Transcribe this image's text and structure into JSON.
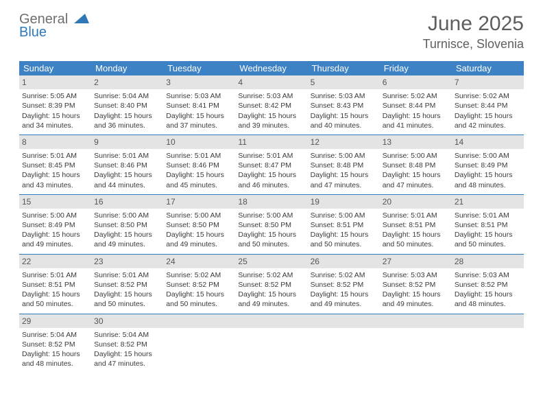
{
  "logo": {
    "general": "General",
    "blue": "Blue"
  },
  "title": "June 2025",
  "location": "Turnisce, Slovenia",
  "colors": {
    "header_bar": "#3d82c4",
    "week_border": "#2f79b9",
    "daynum_bg": "#e4e4e4",
    "text": "#3a3a3a",
    "title_text": "#5e5e5e"
  },
  "daysOfWeek": [
    "Sunday",
    "Monday",
    "Tuesday",
    "Wednesday",
    "Thursday",
    "Friday",
    "Saturday"
  ],
  "weeks": [
    [
      {
        "n": "1",
        "sr": "5:05 AM",
        "ss": "8:39 PM",
        "dl": "15 hours and 34 minutes."
      },
      {
        "n": "2",
        "sr": "5:04 AM",
        "ss": "8:40 PM",
        "dl": "15 hours and 36 minutes."
      },
      {
        "n": "3",
        "sr": "5:03 AM",
        "ss": "8:41 PM",
        "dl": "15 hours and 37 minutes."
      },
      {
        "n": "4",
        "sr": "5:03 AM",
        "ss": "8:42 PM",
        "dl": "15 hours and 39 minutes."
      },
      {
        "n": "5",
        "sr": "5:03 AM",
        "ss": "8:43 PM",
        "dl": "15 hours and 40 minutes."
      },
      {
        "n": "6",
        "sr": "5:02 AM",
        "ss": "8:44 PM",
        "dl": "15 hours and 41 minutes."
      },
      {
        "n": "7",
        "sr": "5:02 AM",
        "ss": "8:44 PM",
        "dl": "15 hours and 42 minutes."
      }
    ],
    [
      {
        "n": "8",
        "sr": "5:01 AM",
        "ss": "8:45 PM",
        "dl": "15 hours and 43 minutes."
      },
      {
        "n": "9",
        "sr": "5:01 AM",
        "ss": "8:46 PM",
        "dl": "15 hours and 44 minutes."
      },
      {
        "n": "10",
        "sr": "5:01 AM",
        "ss": "8:46 PM",
        "dl": "15 hours and 45 minutes."
      },
      {
        "n": "11",
        "sr": "5:01 AM",
        "ss": "8:47 PM",
        "dl": "15 hours and 46 minutes."
      },
      {
        "n": "12",
        "sr": "5:00 AM",
        "ss": "8:48 PM",
        "dl": "15 hours and 47 minutes."
      },
      {
        "n": "13",
        "sr": "5:00 AM",
        "ss": "8:48 PM",
        "dl": "15 hours and 47 minutes."
      },
      {
        "n": "14",
        "sr": "5:00 AM",
        "ss": "8:49 PM",
        "dl": "15 hours and 48 minutes."
      }
    ],
    [
      {
        "n": "15",
        "sr": "5:00 AM",
        "ss": "8:49 PM",
        "dl": "15 hours and 49 minutes."
      },
      {
        "n": "16",
        "sr": "5:00 AM",
        "ss": "8:50 PM",
        "dl": "15 hours and 49 minutes."
      },
      {
        "n": "17",
        "sr": "5:00 AM",
        "ss": "8:50 PM",
        "dl": "15 hours and 49 minutes."
      },
      {
        "n": "18",
        "sr": "5:00 AM",
        "ss": "8:50 PM",
        "dl": "15 hours and 50 minutes."
      },
      {
        "n": "19",
        "sr": "5:00 AM",
        "ss": "8:51 PM",
        "dl": "15 hours and 50 minutes."
      },
      {
        "n": "20",
        "sr": "5:01 AM",
        "ss": "8:51 PM",
        "dl": "15 hours and 50 minutes."
      },
      {
        "n": "21",
        "sr": "5:01 AM",
        "ss": "8:51 PM",
        "dl": "15 hours and 50 minutes."
      }
    ],
    [
      {
        "n": "22",
        "sr": "5:01 AM",
        "ss": "8:51 PM",
        "dl": "15 hours and 50 minutes."
      },
      {
        "n": "23",
        "sr": "5:01 AM",
        "ss": "8:52 PM",
        "dl": "15 hours and 50 minutes."
      },
      {
        "n": "24",
        "sr": "5:02 AM",
        "ss": "8:52 PM",
        "dl": "15 hours and 50 minutes."
      },
      {
        "n": "25",
        "sr": "5:02 AM",
        "ss": "8:52 PM",
        "dl": "15 hours and 49 minutes."
      },
      {
        "n": "26",
        "sr": "5:02 AM",
        "ss": "8:52 PM",
        "dl": "15 hours and 49 minutes."
      },
      {
        "n": "27",
        "sr": "5:03 AM",
        "ss": "8:52 PM",
        "dl": "15 hours and 49 minutes."
      },
      {
        "n": "28",
        "sr": "5:03 AM",
        "ss": "8:52 PM",
        "dl": "15 hours and 48 minutes."
      }
    ],
    [
      {
        "n": "29",
        "sr": "5:04 AM",
        "ss": "8:52 PM",
        "dl": "15 hours and 48 minutes."
      },
      {
        "n": "30",
        "sr": "5:04 AM",
        "ss": "8:52 PM",
        "dl": "15 hours and 47 minutes."
      },
      {
        "empty": true
      },
      {
        "empty": true
      },
      {
        "empty": true
      },
      {
        "empty": true
      },
      {
        "empty": true
      }
    ]
  ],
  "labels": {
    "sunrise": "Sunrise:",
    "sunset": "Sunset:",
    "daylight": "Daylight:"
  }
}
